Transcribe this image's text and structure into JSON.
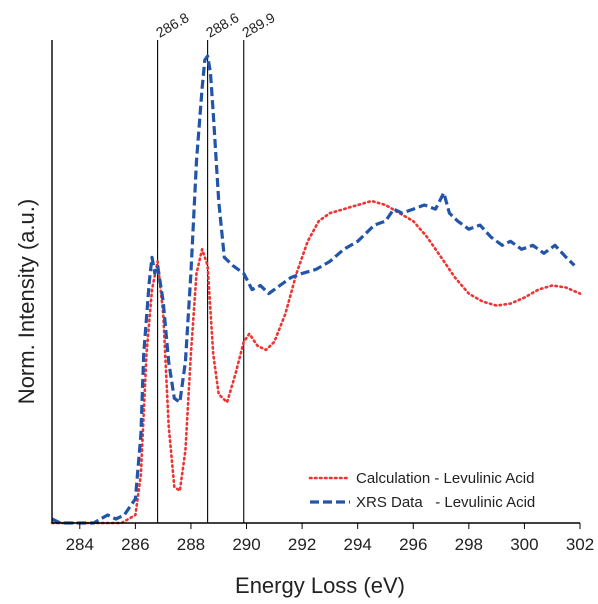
{
  "chart_data": {
    "type": "line",
    "title": "",
    "xlabel": "Energy Loss (eV)",
    "ylabel": "Norm. Intensity (a.u.)",
    "xlim": [
      283,
      302
    ],
    "ylim": [
      0,
      1.2
    ],
    "xticks": [
      "284",
      "286",
      "288",
      "290",
      "292",
      "294",
      "296",
      "298",
      "300",
      "302"
    ],
    "yticks_shown": false,
    "reference_lines": [
      {
        "x": 286.8,
        "label": "286.8"
      },
      {
        "x": 288.6,
        "label": "288.6"
      },
      {
        "x": 289.9,
        "label": "289.9"
      }
    ],
    "legend_position": "bottom-right",
    "series": [
      {
        "name": "Calculation - Levulinic Acid",
        "style": "dotted",
        "color": "#ee3333",
        "x": [
          283.0,
          285.5,
          286.0,
          286.2,
          286.4,
          286.6,
          286.8,
          287.0,
          287.2,
          287.4,
          287.6,
          287.8,
          288.0,
          288.2,
          288.4,
          288.6,
          288.8,
          289.0,
          289.3,
          289.6,
          289.9,
          290.1,
          290.4,
          290.7,
          291.0,
          291.4,
          291.8,
          292.2,
          292.6,
          293.0,
          293.5,
          294.0,
          294.5,
          295.0,
          295.5,
          296.0,
          296.5,
          297.0,
          297.5,
          298.0,
          298.5,
          299.0,
          299.5,
          300.0,
          300.5,
          301.0,
          301.5,
          302.0
        ],
        "y": [
          0.0,
          0.0,
          0.02,
          0.12,
          0.42,
          0.58,
          0.65,
          0.52,
          0.24,
          0.09,
          0.08,
          0.18,
          0.42,
          0.62,
          0.68,
          0.64,
          0.42,
          0.32,
          0.3,
          0.37,
          0.45,
          0.47,
          0.44,
          0.43,
          0.45,
          0.52,
          0.62,
          0.7,
          0.75,
          0.77,
          0.78,
          0.79,
          0.8,
          0.79,
          0.77,
          0.75,
          0.71,
          0.66,
          0.61,
          0.57,
          0.55,
          0.54,
          0.545,
          0.56,
          0.58,
          0.59,
          0.585,
          0.57
        ]
      },
      {
        "name": "XRS Data   - Levulinic Acid",
        "style": "dashed",
        "color": "#2255aa",
        "x": [
          283.0,
          283.3,
          284.0,
          284.5,
          285.0,
          285.3,
          285.6,
          285.8,
          286.0,
          286.2,
          286.3,
          286.5,
          286.6,
          286.7,
          286.8,
          287.0,
          287.2,
          287.4,
          287.6,
          287.8,
          288.0,
          288.2,
          288.4,
          288.5,
          288.6,
          288.7,
          288.8,
          289.0,
          289.2,
          289.5,
          289.9,
          290.2,
          290.5,
          290.8,
          291.2,
          291.6,
          292.0,
          292.5,
          293.0,
          293.5,
          294.0,
          294.3,
          294.6,
          295.0,
          295.3,
          295.6,
          296.0,
          296.4,
          296.8,
          297.1,
          297.3,
          297.6,
          298.0,
          298.4,
          298.8,
          299.2,
          299.5,
          299.9,
          300.3,
          300.7,
          301.1,
          301.5,
          301.8
        ],
        "y": [
          0.01,
          0.0,
          0.0,
          0.0,
          0.02,
          0.01,
          0.02,
          0.04,
          0.06,
          0.22,
          0.42,
          0.6,
          0.66,
          0.62,
          0.64,
          0.55,
          0.4,
          0.31,
          0.3,
          0.4,
          0.62,
          0.9,
          1.08,
          1.15,
          1.16,
          1.12,
          1.02,
          0.8,
          0.66,
          0.64,
          0.62,
          0.58,
          0.59,
          0.57,
          0.59,
          0.61,
          0.62,
          0.63,
          0.65,
          0.68,
          0.7,
          0.72,
          0.74,
          0.75,
          0.78,
          0.77,
          0.78,
          0.79,
          0.78,
          0.82,
          0.77,
          0.75,
          0.73,
          0.74,
          0.71,
          0.69,
          0.7,
          0.68,
          0.69,
          0.67,
          0.69,
          0.66,
          0.64
        ]
      }
    ]
  }
}
